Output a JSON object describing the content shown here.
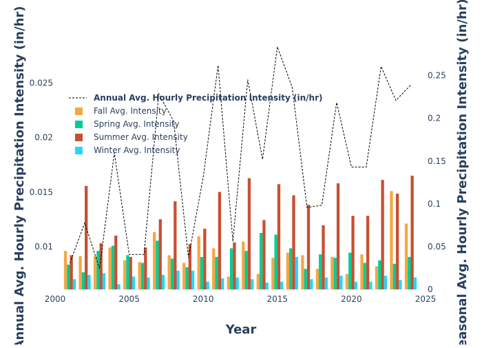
{
  "chart_data": {
    "type": "bar",
    "xlabel": "Year",
    "ylabel": "Annual Avg. Hourly Precipitation Intensity (in/hr)",
    "y2label": "Seasonal Avg. Hourly Precipitation Intensity (in/hr)",
    "xlim": [
      2000,
      2025
    ],
    "ylim": [
      0.0061,
      0.0288
    ],
    "y2lim": [
      0,
      0.29
    ],
    "x_ticks": [
      2000,
      2005,
      2010,
      2015,
      2020,
      2025
    ],
    "y_ticks": [
      0.01,
      0.015,
      0.02,
      0.025
    ],
    "y_tick_labels": [
      "0.01",
      "0.015",
      "0.02",
      "0.025"
    ],
    "y2_ticks": [
      0,
      0.05,
      0.1,
      0.15,
      0.2,
      0.25
    ],
    "y2_tick_labels": [
      "0",
      "0.05",
      "0.1",
      "0.15",
      "0.2",
      "0.25"
    ],
    "grid": false,
    "legend": "top-left",
    "x": [
      2001,
      2002,
      2003,
      2004,
      2005,
      2006,
      2007,
      2008,
      2009,
      2010,
      2011,
      2012,
      2013,
      2014,
      2015,
      2016,
      2017,
      2018,
      2019,
      2020,
      2021,
      2022,
      2023,
      2024
    ],
    "line_series": {
      "name": "Annual Avg. Hourly Precipitation Intensity (in/hr)",
      "color": "#000000",
      "axis": "y",
      "values": [
        0.0085,
        0.0122,
        0.008,
        0.0186,
        0.0093,
        0.0093,
        0.024,
        0.0215,
        0.009,
        0.0164,
        0.0266,
        0.0105,
        0.0253,
        0.018,
        0.0283,
        0.0246,
        0.0136,
        0.0138,
        0.0232,
        0.0173,
        0.0173,
        0.0265,
        0.0234,
        0.0248
      ]
    },
    "series": [
      {
        "name": "Fall Avg. Intensity",
        "color": "#f5a742",
        "axis": "y2",
        "values": [
          0.045,
          0.039,
          0.039,
          0.049,
          0.034,
          0.032,
          0.067,
          0.04,
          0.031,
          0.062,
          0.048,
          0.015,
          0.056,
          0.018,
          0.037,
          0.043,
          0.04,
          0.024,
          0.038,
          0.018,
          0.041,
          0.027,
          0.115,
          0.077
        ]
      },
      {
        "name": "Spring Avg. Intensity",
        "color": "#00cc96",
        "axis": "y2",
        "values": [
          0.029,
          0.02,
          0.045,
          0.051,
          0.04,
          0.031,
          0.057,
          0.036,
          0.026,
          0.038,
          0.038,
          0.048,
          0.045,
          0.066,
          0.064,
          0.048,
          0.024,
          0.041,
          0.037,
          0.043,
          0.031,
          0.034,
          0.03,
          0.038
        ]
      },
      {
        "name": "Summer Avg. Intensity",
        "color": "#c94f32",
        "axis": "y2",
        "values": [
          0.04,
          0.121,
          0.054,
          0.063,
          0.038,
          0.049,
          0.082,
          0.103,
          0.053,
          0.071,
          0.114,
          0.055,
          0.13,
          0.081,
          0.123,
          0.11,
          0.099,
          0.075,
          0.124,
          0.086,
          0.086,
          0.128,
          0.112,
          0.133
        ]
      },
      {
        "name": "Winter Avg. Intensity",
        "color": "#27d6f2",
        "axis": "y2",
        "values": [
          0.012,
          0.017,
          0.019,
          0.006,
          0.015,
          0.014,
          0.017,
          0.022,
          0.022,
          0.009,
          0.013,
          0.014,
          0.012,
          0.008,
          0.009,
          0.038,
          0.012,
          0.014,
          0.016,
          0.009,
          0.009,
          0.016,
          0.011,
          0.014
        ]
      }
    ]
  }
}
